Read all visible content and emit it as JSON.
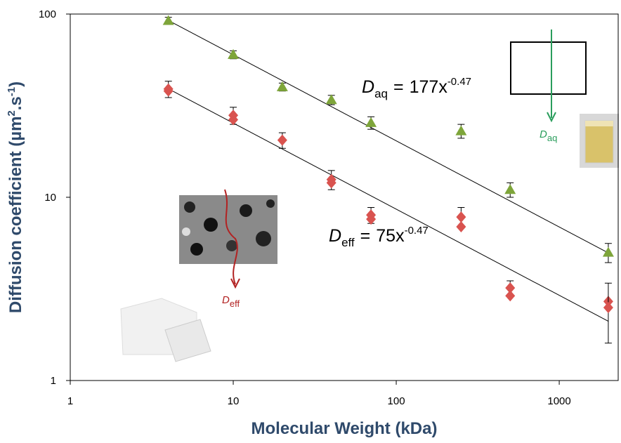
{
  "chart_data": {
    "type": "scatter",
    "xlabel": "Molecular Weight (kDa)",
    "ylabel": {
      "text": "Diffusion coefficient (µm",
      "sup1": "2",
      "middle": ".s",
      "sup2": "-1",
      "end": ")"
    },
    "xscale": "log",
    "yscale": "log",
    "xlim": [
      1,
      2300
    ],
    "ylim": [
      1,
      100
    ],
    "xticks": [
      1,
      10,
      100,
      1000
    ],
    "yticks": [
      1,
      10,
      100
    ],
    "series": [
      {
        "name": "aq",
        "color": "#7ea53a",
        "marker": "triangle",
        "x": [
          4,
          10,
          20,
          40,
          70,
          250,
          500,
          2000
        ],
        "values": [
          92,
          60,
          40,
          34,
          25.5,
          23,
          11,
          5
        ],
        "errors": [
          4,
          3,
          2,
          2,
          2,
          2,
          1,
          0.6
        ],
        "fit": {
          "symbol": "D",
          "subscript": "aq",
          "relation": "=",
          "coefficient": 177,
          "variable": "x",
          "exponent": -0.47
        }
      },
      {
        "name": "eff",
        "color": "#d9534f",
        "marker": "diamond",
        "x": [
          4,
          4,
          10,
          10,
          20,
          40,
          40,
          70,
          70,
          250,
          250,
          500,
          500,
          2000,
          2000
        ],
        "values": [
          39,
          38,
          28,
          26.5,
          20.5,
          12.5,
          12,
          8,
          7.6,
          7.8,
          6.9,
          3.2,
          2.9,
          2.7,
          2.5
        ],
        "errors": [
          4,
          null,
          3,
          null,
          2,
          1.5,
          null,
          0.8,
          null,
          1,
          null,
          0.3,
          null,
          null,
          0.9
        ],
        "fit": {
          "symbol": "D",
          "subscript": "eff",
          "relation": "=",
          "coefficient": 75,
          "variable": "x",
          "exponent": -0.47
        }
      }
    ],
    "inset_labels": [
      {
        "symbol": "D",
        "subscript": "aq",
        "color": "#2a9d5c"
      },
      {
        "symbol": "D",
        "subscript": "eff",
        "color": "#b22222"
      }
    ]
  }
}
